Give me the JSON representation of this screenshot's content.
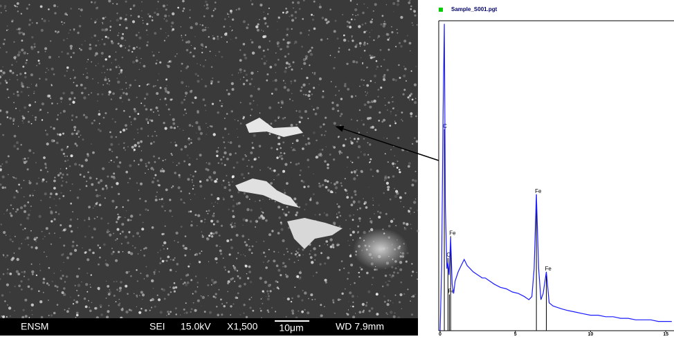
{
  "sem": {
    "labels": [
      "ENSM",
      "SEI",
      "15.0kV",
      "X1,500",
      "10μm",
      "WD 7.9mm"
    ]
  },
  "chart_data": {
    "type": "line",
    "xlim": [
      0,
      15.5
    ],
    "xticks": [
      0,
      5,
      10,
      15
    ],
    "ylim": [
      0,
      100
    ],
    "series": [
      {
        "name": "Sample_S001.pgt",
        "color": "#1a1aff",
        "x": [
          0,
          0.1,
          0.2,
          0.28,
          0.35,
          0.45,
          0.52,
          0.6,
          0.7,
          0.8,
          0.9,
          1.0,
          1.2,
          1.4,
          1.6,
          1.8,
          2.0,
          2.2,
          2.5,
          2.8,
          3.0,
          3.3,
          3.6,
          4.0,
          4.4,
          4.8,
          5.2,
          5.6,
          5.9,
          6.1,
          6.25,
          6.4,
          6.55,
          6.7,
          6.85,
          7.06,
          7.25,
          7.5,
          7.8,
          8.1,
          8.5,
          9.0,
          9.5,
          10.0,
          10.5,
          11.0,
          11.5,
          12.0,
          12.5,
          13.0,
          13.5,
          14.0,
          14.5,
          15.0,
          15.4
        ],
        "values": [
          0,
          20,
          70,
          99,
          40,
          20,
          22,
          18,
          30,
          15,
          12,
          16,
          19,
          21,
          23,
          21,
          20,
          19,
          18,
          17,
          17,
          16,
          15,
          14,
          13.5,
          12.5,
          12,
          11,
          10,
          11,
          20,
          44,
          20,
          10,
          12,
          19,
          9,
          8,
          7.5,
          7,
          6.5,
          6,
          5.5,
          5,
          5,
          4.5,
          4.5,
          4,
          4,
          3.5,
          3.5,
          3.5,
          3,
          3,
          3
        ]
      }
    ],
    "peaks": [
      {
        "label": "C",
        "x": 0.28,
        "y": 65
      },
      {
        "label": "Fe",
        "x": 0.7,
        "y": 30.5
      },
      {
        "label": "O",
        "x": 0.52,
        "y": 23.5
      },
      {
        "label": "Fe",
        "x": 0.615,
        "y": 11.7
      },
      {
        "label": "Fe",
        "x": 6.4,
        "y": 44
      },
      {
        "label": "Fe",
        "x": 7.06,
        "y": 19
      }
    ]
  }
}
